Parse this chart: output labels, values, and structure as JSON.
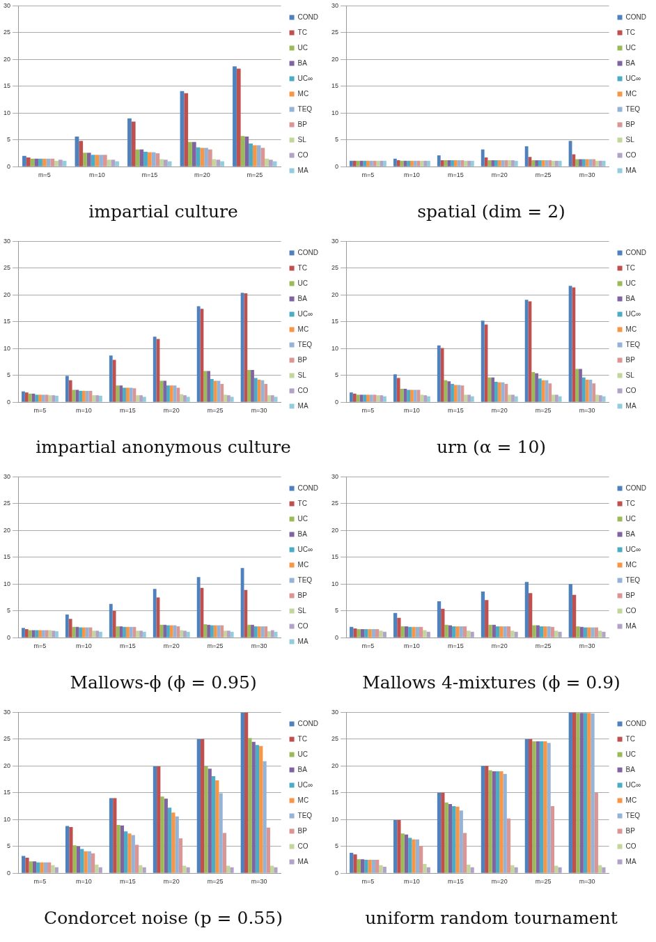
{
  "chart_data": [
    {
      "type": "bar",
      "title": "impartial culture",
      "categories": [
        "m=5",
        "m=10",
        "m=15",
        "m=20",
        "m=25"
      ],
      "ylim": [
        0,
        30
      ],
      "yticks": [
        0,
        5,
        10,
        15,
        20,
        25,
        30
      ],
      "grid": "y",
      "legend": "right",
      "series": [
        {
          "name": "COND",
          "color": "#4f81bd",
          "values": [
            2.0,
            5.6,
            9.0,
            14.1,
            18.7
          ]
        },
        {
          "name": "TC",
          "color": "#c0504d",
          "values": [
            1.7,
            4.8,
            8.4,
            13.7,
            18.3
          ]
        },
        {
          "name": "UC",
          "color": "#9bbb59",
          "values": [
            1.5,
            2.6,
            3.2,
            4.6,
            5.7
          ]
        },
        {
          "name": "BA",
          "color": "#8064a2",
          "values": [
            1.5,
            2.6,
            3.2,
            4.6,
            5.6
          ]
        },
        {
          "name": "UC∞",
          "color": "#4bacc6",
          "values": [
            1.5,
            2.2,
            2.8,
            3.6,
            4.3
          ]
        },
        {
          "name": "MC",
          "color": "#f79646",
          "values": [
            1.5,
            2.2,
            2.7,
            3.5,
            4.0
          ]
        },
        {
          "name": "TEQ",
          "color": "#95b3d7",
          "values": [
            1.5,
            2.2,
            2.7,
            3.5,
            4.0
          ]
        },
        {
          "name": "BP",
          "color": "#d99694",
          "values": [
            1.5,
            2.2,
            2.5,
            3.2,
            3.5
          ]
        },
        {
          "name": "SL",
          "color": "#c3d69b",
          "values": [
            1.1,
            1.3,
            1.4,
            1.4,
            1.5
          ]
        },
        {
          "name": "CO",
          "color": "#b3a2c7",
          "values": [
            1.3,
            1.3,
            1.3,
            1.3,
            1.3
          ]
        },
        {
          "name": "MA",
          "color": "#93cddd",
          "values": [
            1.1,
            1.0,
            1.0,
            1.0,
            1.0
          ]
        }
      ]
    },
    {
      "type": "bar",
      "title": "spatial (dim = 2)",
      "categories": [
        "m=5",
        "m=10",
        "m=15",
        "m=20",
        "m=25",
        "m=30"
      ],
      "ylim": [
        0,
        30
      ],
      "yticks": [
        0,
        5,
        10,
        15,
        20,
        25,
        30
      ],
      "grid": "y",
      "legend": "right",
      "series": [
        {
          "name": "COND",
          "color": "#4f81bd",
          "values": [
            1.1,
            1.5,
            2.1,
            3.2,
            3.8,
            4.8
          ]
        },
        {
          "name": "TC",
          "color": "#c0504d",
          "values": [
            1.1,
            1.2,
            1.2,
            1.7,
            1.8,
            2.3
          ]
        },
        {
          "name": "UC",
          "color": "#9bbb59",
          "values": [
            1.1,
            1.1,
            1.2,
            1.2,
            1.2,
            1.4
          ]
        },
        {
          "name": "BA",
          "color": "#8064a2",
          "values": [
            1.1,
            1.1,
            1.2,
            1.2,
            1.2,
            1.4
          ]
        },
        {
          "name": "UC∞",
          "color": "#4bacc6",
          "values": [
            1.1,
            1.1,
            1.2,
            1.2,
            1.2,
            1.4
          ]
        },
        {
          "name": "MC",
          "color": "#f79646",
          "values": [
            1.1,
            1.1,
            1.2,
            1.2,
            1.2,
            1.4
          ]
        },
        {
          "name": "TEQ",
          "color": "#95b3d7",
          "values": [
            1.1,
            1.1,
            1.2,
            1.2,
            1.2,
            1.4
          ]
        },
        {
          "name": "BP",
          "color": "#d99694",
          "values": [
            1.1,
            1.1,
            1.2,
            1.2,
            1.2,
            1.4
          ]
        },
        {
          "name": "SL",
          "color": "#c3d69b",
          "values": [
            1.1,
            1.1,
            1.1,
            1.2,
            1.1,
            1.1
          ]
        },
        {
          "name": "CO",
          "color": "#b3a2c7",
          "values": [
            1.1,
            1.1,
            1.1,
            1.2,
            1.1,
            1.1
          ]
        },
        {
          "name": "MA",
          "color": "#93cddd",
          "values": [
            1.1,
            1.1,
            1.1,
            1.1,
            1.1,
            1.1
          ]
        }
      ]
    },
    {
      "type": "bar",
      "title": "impartial anonymous culture",
      "categories": [
        "m=5",
        "m=10",
        "m=15",
        "m=20",
        "m=25",
        "m=30"
      ],
      "ylim": [
        0,
        30
      ],
      "yticks": [
        0,
        5,
        10,
        15,
        20,
        25,
        30
      ],
      "grid": "y",
      "legend": "right",
      "series": [
        {
          "name": "COND",
          "color": "#4f81bd",
          "values": [
            2.0,
            4.9,
            8.7,
            12.2,
            17.9,
            20.4
          ]
        },
        {
          "name": "TC",
          "color": "#c0504d",
          "values": [
            1.8,
            4.1,
            7.9,
            11.8,
            17.4,
            20.3
          ]
        },
        {
          "name": "UC",
          "color": "#9bbb59",
          "values": [
            1.6,
            2.3,
            3.1,
            4.0,
            5.8,
            6.0
          ]
        },
        {
          "name": "BA",
          "color": "#8064a2",
          "values": [
            1.6,
            2.3,
            3.1,
            4.0,
            5.8,
            6.0
          ]
        },
        {
          "name": "UC∞",
          "color": "#4bacc6",
          "values": [
            1.4,
            2.1,
            2.7,
            3.1,
            4.3,
            4.5
          ]
        },
        {
          "name": "MC",
          "color": "#f79646",
          "values": [
            1.4,
            2.1,
            2.7,
            3.1,
            4.0,
            4.2
          ]
        },
        {
          "name": "TEQ",
          "color": "#95b3d7",
          "values": [
            1.4,
            2.1,
            2.7,
            3.1,
            4.0,
            4.1
          ]
        },
        {
          "name": "BP",
          "color": "#d99694",
          "values": [
            1.4,
            2.1,
            2.6,
            2.7,
            3.4,
            3.4
          ]
        },
        {
          "name": "SL",
          "color": "#c3d69b",
          "values": [
            1.3,
            1.3,
            1.3,
            1.5,
            1.4,
            1.3
          ]
        },
        {
          "name": "CO",
          "color": "#b3a2c7",
          "values": [
            1.3,
            1.3,
            1.3,
            1.3,
            1.3,
            1.3
          ]
        },
        {
          "name": "MA",
          "color": "#93cddd",
          "values": [
            1.2,
            1.2,
            1.0,
            1.0,
            1.0,
            1.0
          ]
        }
      ]
    },
    {
      "type": "bar",
      "title": "urn (α = 10)",
      "categories": [
        "m=5",
        "m=10",
        "m=15",
        "m=20",
        "m=25",
        "m=30"
      ],
      "ylim": [
        0,
        30
      ],
      "yticks": [
        0,
        5,
        10,
        15,
        20,
        25,
        30
      ],
      "grid": "y",
      "legend": "right",
      "series": [
        {
          "name": "COND",
          "color": "#4f81bd",
          "values": [
            1.8,
            5.2,
            10.6,
            15.2,
            19.1,
            21.7
          ]
        },
        {
          "name": "TC",
          "color": "#c0504d",
          "values": [
            1.6,
            4.5,
            10.1,
            14.5,
            18.8,
            21.4
          ]
        },
        {
          "name": "UC",
          "color": "#9bbb59",
          "values": [
            1.4,
            2.5,
            4.1,
            4.6,
            5.6,
            6.2
          ]
        },
        {
          "name": "BA",
          "color": "#8064a2",
          "values": [
            1.4,
            2.5,
            3.9,
            4.6,
            5.4,
            6.2
          ]
        },
        {
          "name": "UC∞",
          "color": "#4bacc6",
          "values": [
            1.4,
            2.3,
            3.4,
            3.8,
            4.4,
            4.6
          ]
        },
        {
          "name": "MC",
          "color": "#f79646",
          "values": [
            1.4,
            2.3,
            3.2,
            3.7,
            4.1,
            4.2
          ]
        },
        {
          "name": "TEQ",
          "color": "#95b3d7",
          "values": [
            1.4,
            2.3,
            3.2,
            3.7,
            4.1,
            4.2
          ]
        },
        {
          "name": "BP",
          "color": "#d99694",
          "values": [
            1.4,
            2.3,
            3.1,
            3.4,
            3.5,
            3.5
          ]
        },
        {
          "name": "SL",
          "color": "#c3d69b",
          "values": [
            1.3,
            1.4,
            1.4,
            1.4,
            1.4,
            1.4
          ]
        },
        {
          "name": "CO",
          "color": "#b3a2c7",
          "values": [
            1.3,
            1.3,
            1.4,
            1.4,
            1.4,
            1.3
          ]
        },
        {
          "name": "MA",
          "color": "#93cddd",
          "values": [
            1.1,
            1.1,
            1.1,
            1.1,
            1.1,
            1.1
          ]
        }
      ]
    },
    {
      "type": "bar",
      "title": "Mallows-ϕ (ϕ = 0.95)",
      "categories": [
        "m=5",
        "m=10",
        "m=15",
        "m=20",
        "m=25",
        "m=30"
      ],
      "ylim": [
        0,
        30
      ],
      "yticks": [
        0,
        5,
        10,
        15,
        20,
        25,
        30
      ],
      "grid": "y",
      "legend": "right",
      "series": [
        {
          "name": "COND",
          "color": "#4f81bd",
          "values": [
            1.8,
            4.3,
            6.3,
            9.1,
            11.3,
            13.0
          ]
        },
        {
          "name": "TC",
          "color": "#c0504d",
          "values": [
            1.6,
            3.5,
            5.0,
            7.5,
            9.3,
            8.9
          ]
        },
        {
          "name": "UC",
          "color": "#9bbb59",
          "values": [
            1.4,
            2.0,
            2.1,
            2.4,
            2.5,
            2.4
          ]
        },
        {
          "name": "BA",
          "color": "#8064a2",
          "values": [
            1.4,
            2.0,
            2.1,
            2.4,
            2.4,
            2.4
          ]
        },
        {
          "name": "UC∞",
          "color": "#4bacc6",
          "values": [
            1.4,
            1.9,
            2.0,
            2.3,
            2.3,
            2.1
          ]
        },
        {
          "name": "MC",
          "color": "#f79646",
          "values": [
            1.4,
            1.9,
            2.0,
            2.3,
            2.3,
            2.1
          ]
        },
        {
          "name": "TEQ",
          "color": "#95b3d7",
          "values": [
            1.4,
            1.9,
            2.0,
            2.3,
            2.3,
            2.1
          ]
        },
        {
          "name": "BP",
          "color": "#d99694",
          "values": [
            1.4,
            1.9,
            2.0,
            2.1,
            2.3,
            2.1
          ]
        },
        {
          "name": "SL",
          "color": "#c3d69b",
          "values": [
            1.4,
            1.3,
            1.3,
            1.4,
            1.3,
            1.2
          ]
        },
        {
          "name": "CO",
          "color": "#b3a2c7",
          "values": [
            1.3,
            1.3,
            1.3,
            1.3,
            1.3,
            1.4
          ]
        },
        {
          "name": "MA",
          "color": "#93cddd",
          "values": [
            1.2,
            1.1,
            1.1,
            1.1,
            1.1,
            1.1
          ]
        }
      ]
    },
    {
      "type": "bar",
      "title": "Mallows 4-mixtures (ϕ = 0.9)",
      "categories": [
        "m=5",
        "m=10",
        "m=15",
        "m=20",
        "m=25",
        "m=30"
      ],
      "ylim": [
        0,
        30
      ],
      "yticks": [
        0,
        5,
        10,
        15,
        20,
        25,
        30
      ],
      "grid": "y",
      "legend": "right",
      "series": [
        {
          "name": "COND",
          "color": "#4f81bd",
          "values": [
            2.0,
            4.6,
            6.8,
            8.6,
            10.4,
            10.0
          ]
        },
        {
          "name": "TC",
          "color": "#c0504d",
          "values": [
            1.7,
            3.7,
            5.4,
            7.0,
            8.3,
            8.0
          ]
        },
        {
          "name": "UC",
          "color": "#9bbb59",
          "values": [
            1.6,
            2.1,
            2.4,
            2.4,
            2.3,
            2.1
          ]
        },
        {
          "name": "BA",
          "color": "#8064a2",
          "values": [
            1.6,
            2.1,
            2.3,
            2.4,
            2.3,
            2.0
          ]
        },
        {
          "name": "UC∞",
          "color": "#4bacc6",
          "values": [
            1.6,
            2.0,
            2.1,
            2.1,
            2.1,
            1.9
          ]
        },
        {
          "name": "MC",
          "color": "#f79646",
          "values": [
            1.6,
            2.0,
            2.1,
            2.1,
            2.1,
            1.9
          ]
        },
        {
          "name": "TEQ",
          "color": "#95b3d7",
          "values": [
            1.6,
            2.0,
            2.1,
            2.1,
            2.1,
            1.9
          ]
        },
        {
          "name": "BP",
          "color": "#d99694",
          "values": [
            1.6,
            2.0,
            2.1,
            2.1,
            2.0,
            1.9
          ]
        },
        {
          "name": "CO",
          "color": "#c3d69b",
          "values": [
            1.3,
            1.4,
            1.3,
            1.3,
            1.3,
            1.3
          ]
        },
        {
          "name": "MA",
          "color": "#b3a2c7",
          "values": [
            1.1,
            1.1,
            1.1,
            1.1,
            1.1,
            1.1
          ]
        }
      ]
    },
    {
      "type": "bar",
      "title": "Condorcet noise (p = 0.55)",
      "categories": [
        "m=5",
        "m=10",
        "m=15",
        "m=20",
        "m=25",
        "m=30"
      ],
      "ylim": [
        0,
        30
      ],
      "yticks": [
        0,
        5,
        10,
        15,
        20,
        25,
        30
      ],
      "grid": "y",
      "legend": "right",
      "series": [
        {
          "name": "COND",
          "color": "#4f81bd",
          "values": [
            3.2,
            8.8,
            14.0,
            19.9,
            25.0,
            30.0
          ]
        },
        {
          "name": "TC",
          "color": "#c0504d",
          "values": [
            2.9,
            8.6,
            14.0,
            19.9,
            25.0,
            30.0
          ]
        },
        {
          "name": "UC",
          "color": "#9bbb59",
          "values": [
            2.2,
            5.2,
            9.0,
            14.3,
            19.9,
            25.2
          ]
        },
        {
          "name": "BA",
          "color": "#8064a2",
          "values": [
            2.2,
            5.0,
            8.9,
            13.9,
            19.5,
            24.5
          ]
        },
        {
          "name": "UC∞",
          "color": "#4bacc6",
          "values": [
            2.0,
            4.5,
            7.8,
            12.2,
            18.1,
            23.9
          ]
        },
        {
          "name": "MC",
          "color": "#f79646",
          "values": [
            2.0,
            4.1,
            7.4,
            11.3,
            17.3,
            23.7
          ]
        },
        {
          "name": "TEQ",
          "color": "#95b3d7",
          "values": [
            2.0,
            4.1,
            7.1,
            10.6,
            14.9,
            20.9
          ]
        },
        {
          "name": "BP",
          "color": "#d99694",
          "values": [
            2.0,
            3.7,
            5.3,
            6.5,
            7.5,
            8.5
          ]
        },
        {
          "name": "CO",
          "color": "#c3d69b",
          "values": [
            1.5,
            1.6,
            1.5,
            1.4,
            1.4,
            1.4
          ]
        },
        {
          "name": "MA",
          "color": "#b3a2c7",
          "values": [
            1.1,
            1.1,
            1.1,
            1.1,
            1.1,
            1.1
          ]
        }
      ]
    },
    {
      "type": "bar",
      "title": "uniform random tournament",
      "categories": [
        "m=5",
        "m=10",
        "m=15",
        "m=20",
        "m=25",
        "m=30"
      ],
      "ylim": [
        0,
        30
      ],
      "yticks": [
        0,
        5,
        10,
        15,
        20,
        25,
        30
      ],
      "grid": "y",
      "legend": "right",
      "series": [
        {
          "name": "COND",
          "color": "#4f81bd",
          "values": [
            3.8,
            9.9,
            15.0,
            20.0,
            25.0,
            30.0
          ]
        },
        {
          "name": "TC",
          "color": "#c0504d",
          "values": [
            3.5,
            9.9,
            15.0,
            20.0,
            25.0,
            30.0
          ]
        },
        {
          "name": "UC",
          "color": "#9bbb59",
          "values": [
            2.6,
            7.4,
            13.2,
            19.2,
            24.6,
            29.9
          ]
        },
        {
          "name": "BA",
          "color": "#8064a2",
          "values": [
            2.6,
            7.2,
            12.9,
            19.0,
            24.6,
            29.9
          ]
        },
        {
          "name": "UC∞",
          "color": "#4bacc6",
          "values": [
            2.5,
            6.6,
            12.5,
            19.0,
            24.6,
            29.9
          ]
        },
        {
          "name": "MC",
          "color": "#f79646",
          "values": [
            2.5,
            6.3,
            12.4,
            19.0,
            24.6,
            29.9
          ]
        },
        {
          "name": "TEQ",
          "color": "#95b3d7",
          "values": [
            2.5,
            6.3,
            11.7,
            18.5,
            24.3,
            29.8
          ]
        },
        {
          "name": "BP",
          "color": "#d99694",
          "values": [
            2.5,
            5.1,
            7.5,
            10.2,
            12.5,
            15.0
          ]
        },
        {
          "name": "CO",
          "color": "#c3d69b",
          "values": [
            1.5,
            1.7,
            1.6,
            1.5,
            1.4,
            1.5
          ]
        },
        {
          "name": "MA",
          "color": "#b3a2c7",
          "values": [
            1.2,
            1.1,
            1.1,
            1.1,
            1.1,
            1.1
          ]
        }
      ]
    }
  ]
}
